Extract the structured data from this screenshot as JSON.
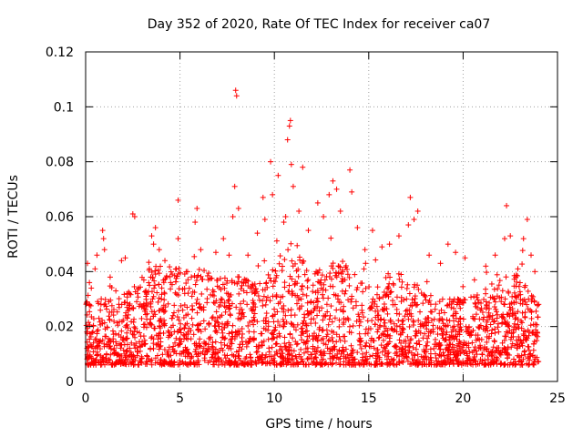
{
  "chart_data": {
    "type": "scatter",
    "title": "Day 352 of 2020, Rate Of TEC Index for receiver ca07",
    "xlabel": "GPS time / hours",
    "ylabel": "ROTI / TECUs",
    "xlim": [
      0,
      25
    ],
    "ylim": [
      0,
      0.12
    ],
    "xticks": [
      0,
      5,
      10,
      15,
      20,
      25
    ],
    "yticks": [
      0,
      0.02,
      0.04,
      0.06,
      0.08,
      0.1,
      0.12
    ],
    "xtick_labels": [
      "0",
      "5",
      "10",
      "15",
      "20",
      "25"
    ],
    "ytick_labels": [
      "0",
      "0.02",
      "0.04",
      "0.06",
      "0.08",
      "0.1",
      "0.12"
    ],
    "grid": true,
    "marker": "plus",
    "color": "#ff0000",
    "x_range_of_data": [
      0,
      24
    ],
    "points": [
      [
        0.1,
        0.043
      ],
      [
        0.2,
        0.036
      ],
      [
        0.3,
        0.034
      ],
      [
        0.5,
        0.041
      ],
      [
        0.6,
        0.046
      ],
      [
        0.9,
        0.055
      ],
      [
        0.95,
        0.052
      ],
      [
        1.0,
        0.048
      ],
      [
        1.3,
        0.038
      ],
      [
        1.6,
        0.033
      ],
      [
        1.9,
        0.044
      ],
      [
        2.1,
        0.045
      ],
      [
        2.5,
        0.061
      ],
      [
        2.6,
        0.06
      ],
      [
        2.8,
        0.034
      ],
      [
        3.2,
        0.031
      ],
      [
        3.5,
        0.053
      ],
      [
        3.6,
        0.05
      ],
      [
        3.7,
        0.056
      ],
      [
        3.9,
        0.048
      ],
      [
        4.2,
        0.044
      ],
      [
        4.5,
        0.036
      ],
      [
        4.8,
        0.041
      ],
      [
        4.9,
        0.052
      ],
      [
        4.9,
        0.066
      ],
      [
        5.4,
        0.04
      ],
      [
        5.8,
        0.058
      ],
      [
        5.9,
        0.063
      ],
      [
        6.1,
        0.048
      ],
      [
        6.5,
        0.037
      ],
      [
        6.9,
        0.047
      ],
      [
        7.3,
        0.052
      ],
      [
        7.6,
        0.046
      ],
      [
        7.8,
        0.06
      ],
      [
        7.9,
        0.071
      ],
      [
        7.95,
        0.106
      ],
      [
        8.0,
        0.104
      ],
      [
        8.1,
        0.063
      ],
      [
        8.6,
        0.046
      ],
      [
        9.1,
        0.054
      ],
      [
        9.4,
        0.067
      ],
      [
        9.5,
        0.059
      ],
      [
        9.8,
        0.08
      ],
      [
        9.9,
        0.068
      ],
      [
        10.2,
        0.075
      ],
      [
        10.5,
        0.058
      ],
      [
        10.6,
        0.06
      ],
      [
        10.7,
        0.088
      ],
      [
        10.8,
        0.093
      ],
      [
        10.85,
        0.095
      ],
      [
        10.9,
        0.079
      ],
      [
        11.0,
        0.071
      ],
      [
        11.3,
        0.062
      ],
      [
        11.5,
        0.078
      ],
      [
        11.8,
        0.055
      ],
      [
        12.3,
        0.065
      ],
      [
        12.6,
        0.06
      ],
      [
        12.9,
        0.068
      ],
      [
        13.1,
        0.073
      ],
      [
        13.3,
        0.07
      ],
      [
        13.5,
        0.062
      ],
      [
        14.0,
        0.077
      ],
      [
        14.1,
        0.069
      ],
      [
        14.4,
        0.056
      ],
      [
        14.8,
        0.048
      ],
      [
        15.2,
        0.055
      ],
      [
        15.7,
        0.049
      ],
      [
        16.1,
        0.05
      ],
      [
        16.6,
        0.053
      ],
      [
        17.1,
        0.057
      ],
      [
        17.2,
        0.067
      ],
      [
        17.4,
        0.059
      ],
      [
        17.6,
        0.062
      ],
      [
        18.2,
        0.046
      ],
      [
        18.8,
        0.043
      ],
      [
        19.2,
        0.05
      ],
      [
        19.6,
        0.047
      ],
      [
        20.1,
        0.045
      ],
      [
        20.6,
        0.037
      ],
      [
        21.2,
        0.042
      ],
      [
        21.7,
        0.046
      ],
      [
        22.2,
        0.052
      ],
      [
        22.3,
        0.064
      ],
      [
        22.5,
        0.053
      ],
      [
        22.9,
        0.041
      ],
      [
        23.2,
        0.052
      ],
      [
        23.4,
        0.059
      ],
      [
        23.6,
        0.046
      ],
      [
        23.8,
        0.04
      ]
    ]
  }
}
